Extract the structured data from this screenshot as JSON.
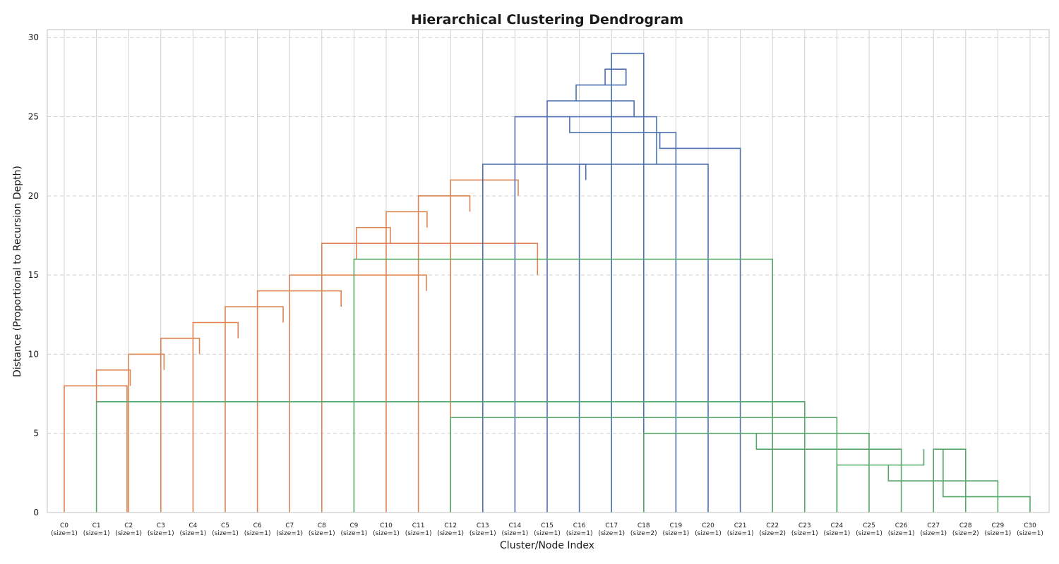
{
  "chart_data": {
    "type": "dendrogram",
    "title": "Hierarchical Clustering Dendrogram",
    "xlabel": "Cluster/Node Index",
    "ylabel": "Distance (Proportional to Recursion Depth)",
    "ylim": [
      0,
      30.5
    ],
    "yticks": [
      0,
      5,
      10,
      15,
      20,
      25,
      30
    ],
    "grid": true,
    "colors": {
      "orange": "#dd8452",
      "blue": "#4c72b0",
      "green": "#55a868",
      "grid": "#d0d0d0",
      "frame": "#cccccc"
    },
    "leaves": [
      {
        "label": "C0",
        "size": "(size=1)"
      },
      {
        "label": "C1",
        "size": "(size=1)"
      },
      {
        "label": "C2",
        "size": "(size=1)"
      },
      {
        "label": "C3",
        "size": "(size=1)"
      },
      {
        "label": "C4",
        "size": "(size=1)"
      },
      {
        "label": "C5",
        "size": "(size=1)"
      },
      {
        "label": "C6",
        "size": "(size=1)"
      },
      {
        "label": "C7",
        "size": "(size=1)"
      },
      {
        "label": "C8",
        "size": "(size=1)"
      },
      {
        "label": "C9",
        "size": "(size=1)"
      },
      {
        "label": "C10",
        "size": "(size=1)"
      },
      {
        "label": "C11",
        "size": "(size=1)"
      },
      {
        "label": "C12",
        "size": "(size=1)"
      },
      {
        "label": "C13",
        "size": "(size=1)"
      },
      {
        "label": "C14",
        "size": "(size=1)"
      },
      {
        "label": "C15",
        "size": "(size=1)"
      },
      {
        "label": "C16",
        "size": "(size=1)"
      },
      {
        "label": "C17",
        "size": "(size=1)"
      },
      {
        "label": "C18",
        "size": "(size=2)"
      },
      {
        "label": "C19",
        "size": "(size=1)"
      },
      {
        "label": "C20",
        "size": "(size=1)"
      },
      {
        "label": "C21",
        "size": "(size=1)"
      },
      {
        "label": "C22",
        "size": "(size=2)"
      },
      {
        "label": "C23",
        "size": "(size=1)"
      },
      {
        "label": "C24",
        "size": "(size=1)"
      },
      {
        "label": "C25",
        "size": "(size=1)"
      },
      {
        "label": "C26",
        "size": "(size=1)"
      },
      {
        "label": "C27",
        "size": "(size=1)"
      },
      {
        "label": "C28",
        "size": "(size=2)"
      },
      {
        "label": "C29",
        "size": "(size=1)"
      },
      {
        "label": "C30",
        "size": "(size=1)"
      }
    ],
    "links": [
      {
        "x1": 0,
        "x2": 1.95,
        "h": 8,
        "y1": 0,
        "y2": 0,
        "color": "orange"
      },
      {
        "x1": 1,
        "x2": 2.05,
        "h": 9,
        "y1": 7,
        "y2": 8,
        "color": "orange"
      },
      {
        "x1": 2,
        "x2": 3.1,
        "h": 10,
        "y1": 0,
        "y2": 9,
        "color": "orange"
      },
      {
        "x1": 3,
        "x2": 4.2,
        "h": 11,
        "y1": 0,
        "y2": 10,
        "color": "orange"
      },
      {
        "x1": 4,
        "x2": 5.4,
        "h": 12,
        "y1": 0,
        "y2": 11,
        "color": "orange"
      },
      {
        "x1": 5,
        "x2": 6.8,
        "h": 13,
        "y1": 0,
        "y2": 12,
        "color": "orange"
      },
      {
        "x1": 6,
        "x2": 8.6,
        "h": 14,
        "y1": 0,
        "y2": 13,
        "color": "orange"
      },
      {
        "x1": 7,
        "x2": 11.25,
        "h": 15,
        "y1": 0,
        "y2": 14,
        "color": "orange"
      },
      {
        "x1": 8,
        "x2": 14.7,
        "h": 17,
        "y1": 0,
        "y2": 15,
        "color": "orange"
      },
      {
        "x1": 9.08,
        "x2": 10.13,
        "h": 18,
        "y1": 16,
        "y2": 17,
        "color": "orange"
      },
      {
        "x1": 10,
        "x2": 11.27,
        "h": 19,
        "y1": 0,
        "y2": 18,
        "color": "orange"
      },
      {
        "x1": 11,
        "x2": 12.6,
        "h": 20,
        "y1": 0,
        "y2": 19,
        "color": "orange"
      },
      {
        "x1": 12,
        "x2": 14.1,
        "h": 21,
        "y1": 0,
        "y2": 20,
        "color": "orange"
      },
      {
        "x1": 13,
        "x2": 16.2,
        "h": 22,
        "y1": 0,
        "y2": 21,
        "color": "blue"
      },
      {
        "x1": 14,
        "x2": 18.4,
        "h": 25,
        "y1": 0,
        "y2": 22,
        "color": "blue"
      },
      {
        "x1": 15,
        "x2": 17.7,
        "h": 26,
        "y1": 0,
        "y2": 25,
        "color": "blue"
      },
      {
        "x1": 15.7,
        "x2": 19.0,
        "h": 24,
        "y1": 25,
        "y2": 0,
        "color": "blue"
      },
      {
        "x1": 16,
        "x2": 20,
        "h": 22,
        "y1": 0,
        "y2": 0,
        "color": "blue"
      },
      {
        "x1": 18.5,
        "x2": 21,
        "h": 23,
        "y1": 24,
        "y2": 0,
        "color": "blue"
      },
      {
        "x1": 16.8,
        "x2": 17.45,
        "h": 28,
        "y1": 27,
        "y2": 27,
        "color": "blue"
      },
      {
        "x1": 15.9,
        "x2": 17.45,
        "h": 27,
        "y1": 26,
        "y2": 28,
        "color": "blue"
      },
      {
        "x1": 17,
        "x2": 18,
        "h": 29,
        "y1": 0,
        "y2": 0,
        "color": "blue"
      },
      {
        "x1": 9,
        "x2": 22,
        "h": 16,
        "y1": 0,
        "y2": 0,
        "color": "green"
      },
      {
        "x1": 1,
        "x2": 23,
        "h": 7,
        "y1": 0,
        "y2": 0,
        "color": "green"
      },
      {
        "x1": 12,
        "x2": 24,
        "h": 6,
        "y1": 0,
        "y2": 0,
        "color": "green"
      },
      {
        "x1": 18,
        "x2": 25,
        "h": 5,
        "y1": 0,
        "y2": 0,
        "color": "green"
      },
      {
        "x1": 21.5,
        "x2": 26,
        "h": 4,
        "y1": 5,
        "y2": 0,
        "color": "green"
      },
      {
        "x1": 24,
        "x2": 26.7,
        "h": 3,
        "y1": 0,
        "y2": 4,
        "color": "green"
      },
      {
        "x1": 25.6,
        "x2": 29,
        "h": 2,
        "y1": 3,
        "y2": 0,
        "color": "green"
      },
      {
        "x1": 27,
        "x2": 28,
        "h": 4,
        "y1": 0,
        "y2": 0,
        "color": "green"
      },
      {
        "x1": 27.3,
        "x2": 30,
        "h": 1,
        "y1": 4,
        "y2": 0,
        "color": "green"
      }
    ]
  }
}
